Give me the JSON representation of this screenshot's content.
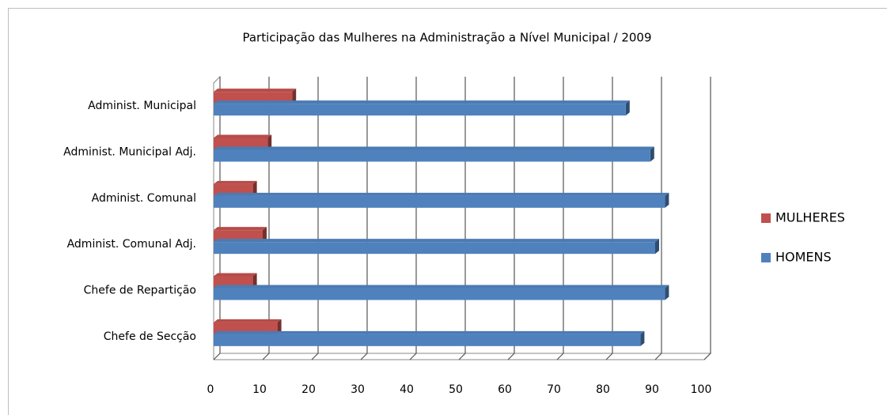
{
  "chart_data": {
    "type": "bar",
    "orientation": "horizontal",
    "title": "Participação das Mulheres na Administração a Nível Municipal / 2009",
    "categories": [
      "Administ. Municipal",
      "Administ. Municipal Adj.",
      "Administ. Comunal",
      "Administ. Comunal Adj.",
      "Chefe de Repartição",
      "Chefe de Secção"
    ],
    "series": [
      {
        "name": "MULHERES",
        "color": "#c0504d",
        "values": [
          16,
          11,
          8,
          10,
          8,
          13
        ]
      },
      {
        "name": "HOMENS",
        "color": "#4f81bd",
        "values": [
          84,
          89,
          92,
          90,
          92,
          87
        ]
      }
    ],
    "xlim": [
      0,
      100
    ],
    "xticks": [
      0,
      10,
      20,
      30,
      40,
      50,
      60,
      70,
      80,
      90,
      100
    ],
    "grid": true,
    "legend": "right"
  }
}
